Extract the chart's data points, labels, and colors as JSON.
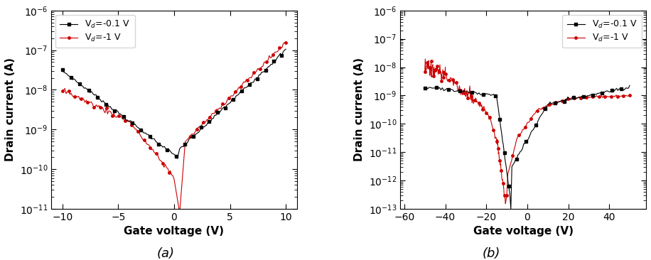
{
  "panel_a": {
    "xlim": [
      -11,
      11
    ],
    "xticks": [
      -10,
      -5,
      0,
      5,
      10
    ],
    "ylim_log": [
      -11,
      -6
    ],
    "ylabel": "Drain current (A)",
    "xlabel": "Gate voltage (V)",
    "legend1": "V$_d$=-0.1 V",
    "legend2": "V$_d$=-1 V",
    "color_black": "#000000",
    "color_red": "#cc0000",
    "label_a": "(a)"
  },
  "panel_b": {
    "xlim": [
      -62,
      58
    ],
    "xticks": [
      -60,
      -40,
      -20,
      0,
      20,
      40
    ],
    "ylim_log": [
      -13,
      -6
    ],
    "ylabel": "Drain current (A)",
    "xlabel": "Gate voltage (V)",
    "legend1": "V$_d$=-0.1 V",
    "legend2": "V$_d$=-1 V",
    "color_black": "#000000",
    "color_red": "#cc0000",
    "label_b": "(b)"
  }
}
